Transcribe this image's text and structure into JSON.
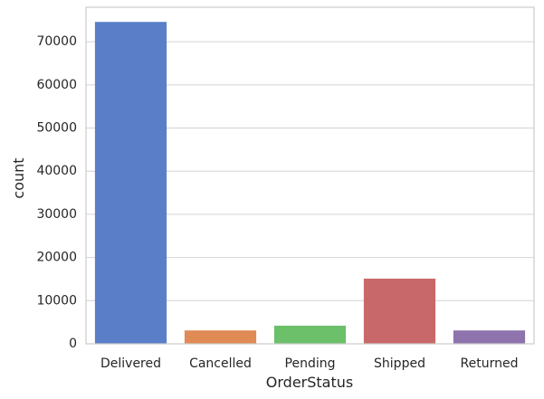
{
  "chart_data": {
    "type": "bar",
    "title": "",
    "xlabel": "OrderStatus",
    "ylabel": "count",
    "categories": [
      "Delivered",
      "Cancelled",
      "Pending",
      "Shipped",
      "Returned"
    ],
    "values": [
      74600,
      3100,
      4200,
      15100,
      3100
    ],
    "colors": [
      "#5a7fc8",
      "#e08a55",
      "#6cc06a",
      "#c9686a",
      "#8e73ad"
    ],
    "ylim": [
      0,
      78000
    ],
    "yticks": [
      0,
      10000,
      20000,
      30000,
      40000,
      50000,
      60000,
      70000
    ],
    "grid": true,
    "grid_color": "#d4d4d4",
    "frame_color": "#cccccc",
    "legend": false
  }
}
